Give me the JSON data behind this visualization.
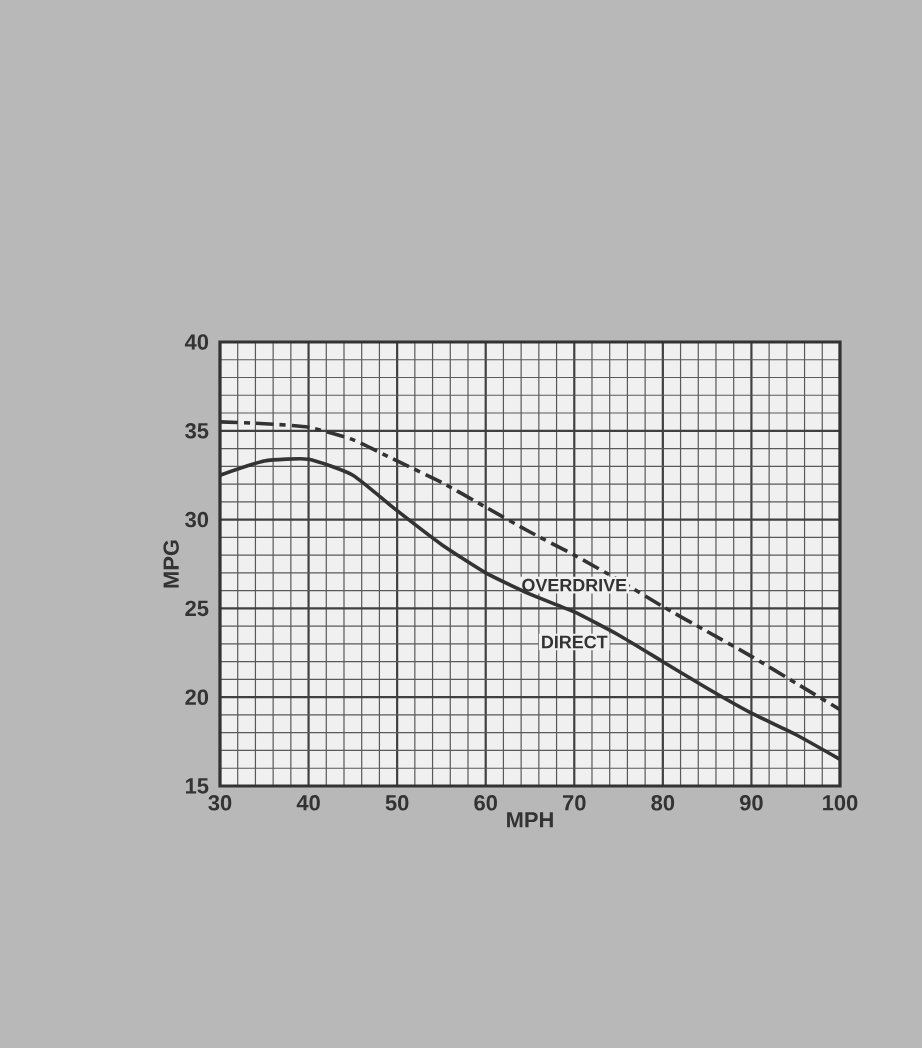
{
  "chart_data": {
    "type": "line",
    "xlabel": "MPH",
    "ylabel": "MPG",
    "xlim": [
      30,
      100
    ],
    "ylim": [
      15,
      40
    ],
    "xticks": [
      30,
      40,
      50,
      60,
      70,
      80,
      90,
      100
    ],
    "yticks": [
      15,
      20,
      25,
      30,
      35,
      40
    ],
    "grid": true,
    "legend": false,
    "x": [
      30,
      35,
      40,
      45,
      50,
      55,
      60,
      65,
      70,
      75,
      80,
      85,
      90,
      95,
      100
    ],
    "series": [
      {
        "name": "OVERDRIVE",
        "color": "#333333",
        "line_style": "dashed",
        "values": [
          35.5,
          35.4,
          35.2,
          34.5,
          33.3,
          32.1,
          30.7,
          29.3,
          28.0,
          26.6,
          25.1,
          23.7,
          22.3,
          20.8,
          19.3
        ]
      },
      {
        "name": "DIRECT",
        "color": "#333333",
        "line_style": "solid",
        "values": [
          32.5,
          33.3,
          33.4,
          32.5,
          30.5,
          28.6,
          27.0,
          25.8,
          24.8,
          23.5,
          22.0,
          20.5,
          19.1,
          17.9,
          16.5
        ]
      }
    ]
  }
}
